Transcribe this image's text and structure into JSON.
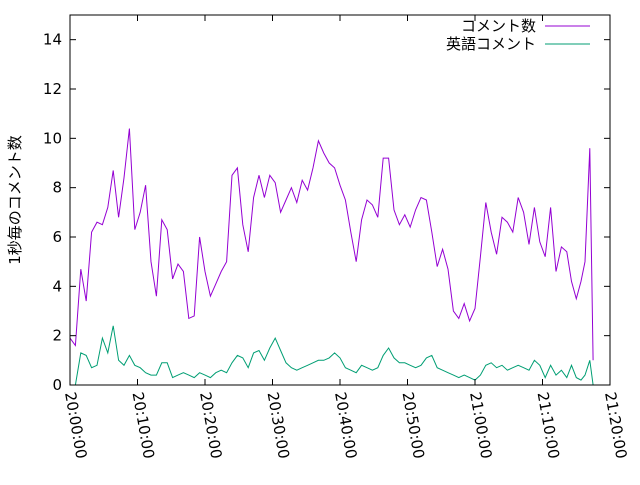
{
  "chart_data": {
    "type": "line",
    "title": "",
    "xlabel": "",
    "ylabel": "1秒毎のコメント数",
    "xlim": [
      "20:00:00",
      "21:20:00"
    ],
    "ylim": [
      0,
      15
    ],
    "grid": false,
    "legend_position": "top-right",
    "x_ticks": [
      "20:00:00",
      "20:10:00",
      "20:20:00",
      "20:30:00",
      "20:40:00",
      "20:50:00",
      "21:00:00",
      "21:10:00",
      "21:20:00"
    ],
    "y_ticks": [
      "0",
      "2",
      "4",
      "6",
      "8",
      "10",
      "12",
      "14"
    ],
    "x_minutes": [
      0.0,
      0.8,
      1.6,
      2.4,
      3.2,
      4.0,
      4.8,
      5.6,
      6.4,
      7.2,
      8.0,
      8.8,
      9.6,
      10.4,
      11.2,
      12.0,
      12.8,
      13.6,
      14.4,
      15.2,
      16.0,
      16.8,
      17.6,
      18.4,
      19.2,
      20.0,
      20.8,
      21.6,
      22.4,
      23.2,
      24.0,
      24.8,
      25.6,
      26.4,
      27.2,
      28.0,
      28.8,
      29.6,
      30.4,
      31.2,
      32.0,
      32.8,
      33.6,
      34.4,
      35.2,
      36.0,
      36.8,
      37.6,
      38.4,
      39.2,
      40.0,
      40.8,
      41.6,
      42.4,
      43.2,
      44.0,
      44.8,
      45.6,
      46.4,
      47.2,
      48.0,
      48.8,
      49.6,
      50.4,
      51.2,
      52.0,
      52.8,
      53.6,
      54.4,
      55.2,
      56.0,
      56.8,
      57.6,
      58.4,
      59.2,
      60.0,
      60.8,
      61.6,
      62.4,
      63.2,
      64.0,
      64.8,
      65.6,
      66.4,
      67.2,
      68.0,
      68.8,
      69.6,
      70.4,
      71.2,
      72.0,
      72.8,
      73.6
    ],
    "series": [
      {
        "name": "コメント数",
        "color": "#9400d3",
        "values": [
          1.9,
          1.6,
          4.7,
          3.4,
          6.2,
          6.6,
          6.5,
          7.2,
          8.7,
          6.8,
          8.4,
          10.4,
          6.3,
          7.0,
          8.1,
          5.0,
          3.6,
          6.7,
          6.3,
          4.3,
          4.9,
          4.6,
          2.7,
          2.8,
          6.0,
          4.6,
          3.6,
          4.1,
          4.6,
          5.0,
          8.5,
          8.8,
          6.5,
          5.4,
          7.6,
          8.5,
          7.6,
          8.5,
          8.2,
          7.0,
          7.5,
          8.0,
          7.4,
          8.3,
          7.9,
          8.8,
          9.9,
          9.4,
          9.0,
          8.8,
          8.1,
          7.5,
          6.2,
          5.0,
          6.7,
          7.5,
          7.3,
          6.8,
          9.2,
          9.2,
          7.1,
          6.5,
          6.9,
          6.4,
          7.1,
          7.6,
          7.5,
          6.2,
          4.8,
          5.5,
          4.7,
          3.0,
          2.7,
          3.3,
          2.6,
          3.1,
          5.2,
          7.4,
          6.2,
          5.3,
          6.8,
          6.6,
          6.2,
          7.6,
          7.0,
          5.7,
          7.2,
          5.8,
          5.2,
          7.2,
          4.6,
          5.6,
          5.4
        ]
      },
      {
        "name": "英語コメント",
        "color": "#009e73",
        "values": [
          0.0,
          0.0,
          1.3,
          1.2,
          0.7,
          0.8,
          1.9,
          1.3,
          2.4,
          1.0,
          0.8,
          1.2,
          0.8,
          0.7,
          0.5,
          0.4,
          0.4,
          0.9,
          0.9,
          0.3,
          0.4,
          0.5,
          0.4,
          0.3,
          0.5,
          0.4,
          0.3,
          0.5,
          0.6,
          0.5,
          0.9,
          1.2,
          1.1,
          0.7,
          1.3,
          1.4,
          1.0,
          1.5,
          1.9,
          1.4,
          0.9,
          0.7,
          0.6,
          0.7,
          0.8,
          0.9,
          1.0,
          1.0,
          1.1,
          1.3,
          1.1,
          0.7,
          0.6,
          0.5,
          0.8,
          0.7,
          0.6,
          0.7,
          1.2,
          1.5,
          1.1,
          0.9,
          0.9,
          0.8,
          0.7,
          0.8,
          1.1,
          1.2,
          0.7,
          0.6,
          0.5,
          0.4,
          0.3,
          0.4,
          0.3,
          0.2,
          0.4,
          0.8,
          0.9,
          0.7,
          0.8,
          0.6,
          0.7,
          0.8,
          0.7,
          0.6,
          1.0,
          0.8,
          0.3,
          0.8,
          0.4,
          0.6,
          0.3
        ]
      }
    ],
    "tail_minutes": [
      73.6,
      74.3,
      75.0,
      75.7,
      76.3,
      77.0
    ],
    "tail_series_values": [
      [
        5.4,
        4.2,
        3.5,
        4.2,
        5.0,
        9.6
      ],
      [
        0.3,
        0.8,
        0.3,
        0.2,
        0.4,
        1.0
      ]
    ],
    "end_minutes": 77.5,
    "end_values": [
      1.0,
      0.0
    ]
  }
}
